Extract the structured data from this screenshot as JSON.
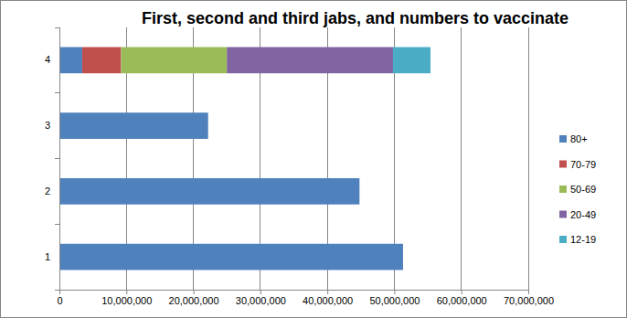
{
  "chart_data": {
    "type": "bar",
    "orientation": "horizontal",
    "stacked": true,
    "grid": true,
    "legend": "right",
    "title": "First, second and third jabs, and numbers to vaccinate",
    "categories": [
      "1",
      "2",
      "3",
      "4"
    ],
    "series": [
      {
        "name": "80+",
        "color": "#4f81bd",
        "values": [
          51300000,
          44800000,
          22200000,
          3400000
        ]
      },
      {
        "name": "70-79",
        "color": "#c0504d",
        "values": [
          null,
          null,
          null,
          5800000
        ]
      },
      {
        "name": "50-69",
        "color": "#9bbb59",
        "values": [
          null,
          null,
          null,
          15800000
        ]
      },
      {
        "name": "20-49",
        "color": "#8064a2",
        "values": [
          null,
          null,
          null,
          24800000
        ]
      },
      {
        "name": "12-19",
        "color": "#4bacc6",
        "values": [
          null,
          null,
          null,
          5600000
        ]
      }
    ],
    "xlim": [
      0,
      70000000
    ],
    "xticks": [
      0,
      {
        "value": 10000000,
        "label": "10,000,000"
      },
      {
        "value": 20000000,
        "label": "20,000,000"
      },
      {
        "value": 30000000,
        "label": "30,000,000"
      },
      {
        "value": 40000000,
        "label": "40,000,000"
      },
      {
        "value": 50000000,
        "label": "50,000,000"
      },
      {
        "value": 60000000,
        "label": "60,000,000"
      },
      {
        "value": 70000000,
        "label": "70,000,000"
      }
    ]
  }
}
